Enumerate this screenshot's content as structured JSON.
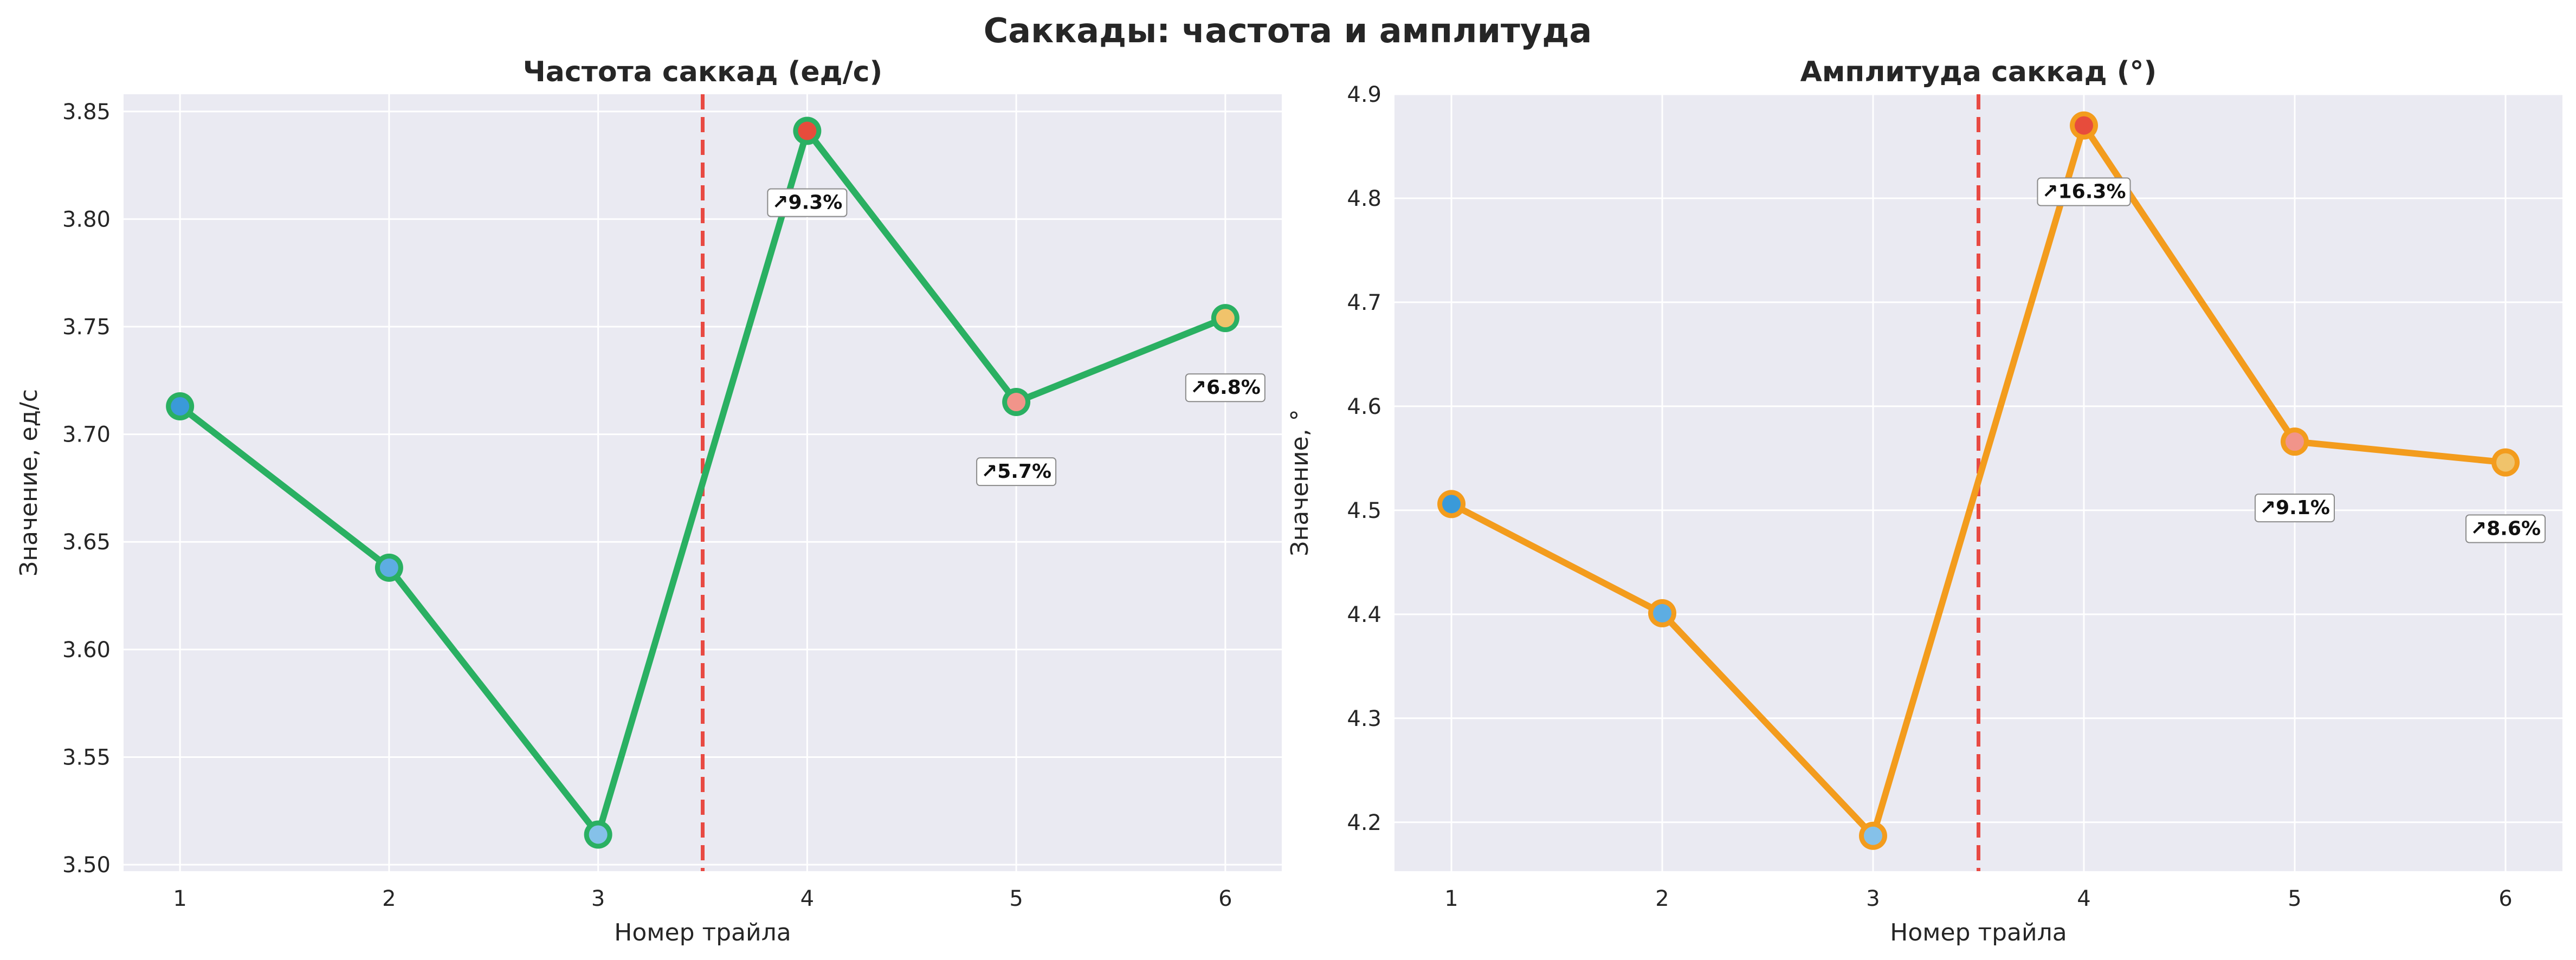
{
  "figure": {
    "suptitle": "Саккады: частота и амплитуда",
    "colors": {
      "background": "#ffffff",
      "axes_bg": "#eaeaf2",
      "grid": "#ffffff",
      "vline": "#e8423a"
    }
  },
  "chart_data": [
    {
      "type": "line",
      "title": "Частота саккад (ед/с)",
      "xlabel": "Номер трайла",
      "ylabel": "Значение, ед/с",
      "x": [
        1,
        2,
        3,
        4,
        5,
        6
      ],
      "xticks": [
        "1",
        "2",
        "3",
        "4",
        "5",
        "6"
      ],
      "xlim": [
        0.73,
        6.27
      ],
      "ylim": [
        3.497,
        3.858
      ],
      "yticks": [
        "3.50",
        "3.55",
        "3.60",
        "3.65",
        "3.70",
        "3.75",
        "3.80",
        "3.85"
      ],
      "series": [
        {
          "values": [
            3.713,
            3.638,
            3.514,
            3.841,
            3.715,
            3.754
          ],
          "color": "#2ab062",
          "marker_fills": [
            "#3a9ad9",
            "#5dade2",
            "#85c1e9",
            "#e74c3c",
            "#f1948a",
            "#f0c36b"
          ]
        }
      ],
      "vline_x": 3.5,
      "annotations": [
        {
          "x": 4,
          "y": 3.808,
          "text": "↗9.3%"
        },
        {
          "x": 5,
          "y": 3.683,
          "text": "↗5.7%"
        },
        {
          "x": 6,
          "y": 3.722,
          "text": "↗6.8%"
        }
      ],
      "grid": true
    },
    {
      "type": "line",
      "title": "Амплитуда саккад (°)",
      "xlabel": "Номер трайла",
      "ylabel": "Значение, °",
      "x": [
        1,
        2,
        3,
        4,
        5,
        6
      ],
      "xticks": [
        "1",
        "2",
        "3",
        "4",
        "5",
        "6"
      ],
      "xlim": [
        0.73,
        6.27
      ],
      "ylim": [
        4.153,
        4.9
      ],
      "yticks": [
        "4.2",
        "4.3",
        "4.4",
        "4.5",
        "4.6",
        "4.7",
        "4.8",
        "4.9"
      ],
      "series": [
        {
          "values": [
            4.506,
            4.401,
            4.187,
            4.87,
            4.566,
            4.546
          ],
          "color": "#f39c1d",
          "marker_fills": [
            "#3a9ad9",
            "#5dade2",
            "#85c1e9",
            "#e74c3c",
            "#f1948a",
            "#f0c36b"
          ]
        }
      ],
      "vline_x": 3.5,
      "annotations": [
        {
          "x": 4,
          "y": 4.807,
          "text": "↗16.3%"
        },
        {
          "x": 5,
          "y": 4.503,
          "text": "↗9.1%"
        },
        {
          "x": 6,
          "y": 4.483,
          "text": "↗8.6%"
        }
      ],
      "grid": true
    }
  ]
}
